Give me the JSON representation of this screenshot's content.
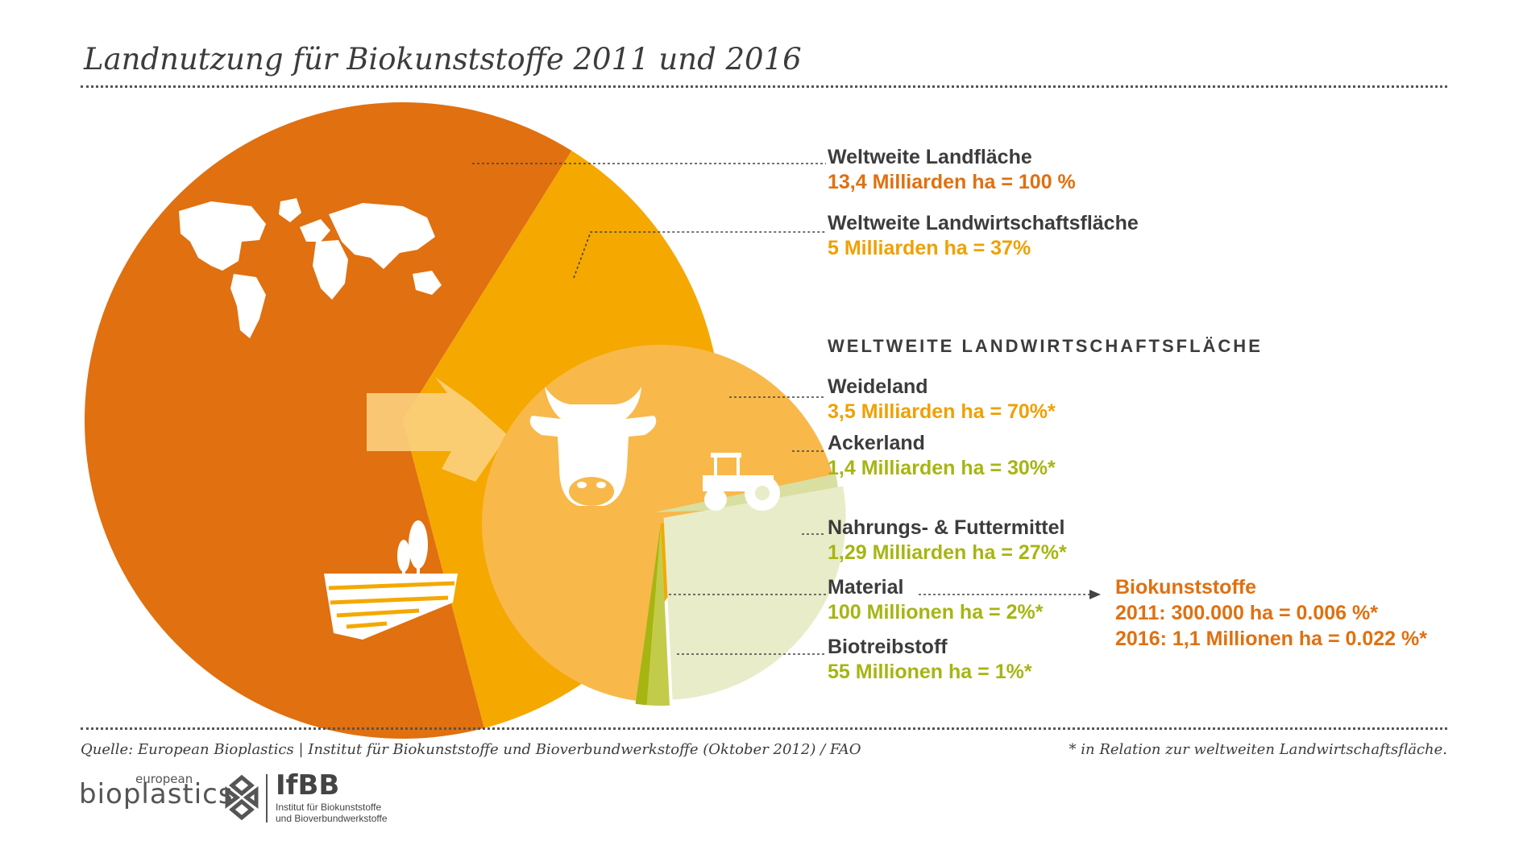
{
  "title": "Landnutzung für Biokunststoffe 2011 und 2016",
  "colors": {
    "world": "#e07010",
    "agri": "#f5a800",
    "pasture": "#f8b84a",
    "crop": "#d9dfa0",
    "food": "#e9ecc8",
    "material": "#c3cc4a",
    "biofuel": "#a6b512",
    "text_dark": "#3c3c3c",
    "orange_text": "#e07010",
    "yellow_text": "#f0a000",
    "green_text": "#a6b512"
  },
  "chart_data": {
    "type": "pie",
    "pies": [
      {
        "name": "world_land",
        "slices": [
          {
            "label": "Weltweite Landwirtschaftsfläche",
            "percent": 37
          },
          {
            "label": "Übrige Landfläche",
            "percent": 63
          }
        ]
      },
      {
        "name": "agricultural_land",
        "slices": [
          {
            "label": "Weideland",
            "percent": 70
          },
          {
            "label": "Nahrungs- & Futtermittel",
            "percent": 27
          },
          {
            "label": "Material",
            "percent": 2
          },
          {
            "label": "Biotreibstoff",
            "percent": 1
          }
        ]
      }
    ]
  },
  "labels": {
    "world": {
      "name": "Weltweite Landfläche",
      "value": "13,4 Milliarden ha = 100 %"
    },
    "agri": {
      "name": "Weltweite Landwirtschaftsfläche",
      "value": "5 Milliarden ha = 37%"
    },
    "section_heading": "WELTWEITE LANDWIRTSCHAFTSFLÄCHE",
    "pasture": {
      "name": "Weideland",
      "value": "3,5 Milliarden ha = 70%*"
    },
    "crop": {
      "name": "Ackerland",
      "value": "1,4 Milliarden ha = 30%*"
    },
    "food": {
      "name": "Nahrungs- & Futtermittel",
      "value": "1,29 Milliarden ha = 27%*"
    },
    "material": {
      "name": "Material",
      "value": "100 Millionen ha = 2%*"
    },
    "biofuel": {
      "name": "Biotreibstoff",
      "value": "55 Millionen ha = 1%*"
    }
  },
  "bioplastics": {
    "name": "Biokunststoffe",
    "line_2011": "2011: 300.000 ha = 0.006 %*",
    "line_2016": "2016: 1,1 Millionen ha = 0.022 %*"
  },
  "footer": {
    "source": "Quelle: European Bioplastics | Institut für Biokunststoffe und Bioverbundwerkstoffe (Oktober 2012) / FAO",
    "note": "* in Relation zur weltweiten Landwirtschaftsfläche."
  },
  "logos": {
    "eb_small": "european",
    "eb_big": "bioplastics",
    "ifbb_abbr": "IfBB",
    "ifbb_line1": "Institut für Biokunststoffe",
    "ifbb_line2": "und Bioverbundwerkstoffe"
  },
  "icons": [
    "world-map-icon",
    "cow-head-icon",
    "tractor-icon",
    "field-trees-icon",
    "arrow-icon"
  ]
}
